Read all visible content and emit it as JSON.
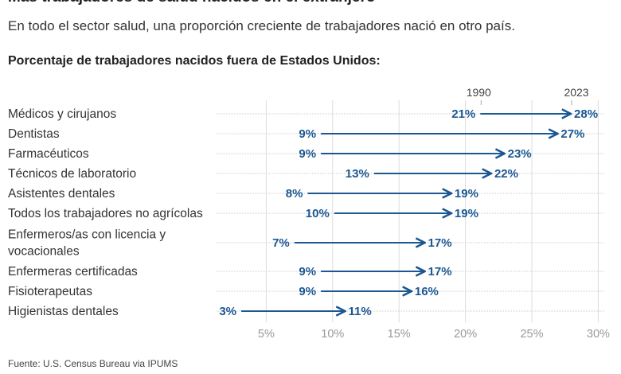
{
  "title": "Más trabajadores de salud nacidos en el extranjero",
  "subtitle": "En todo el sector salud, una proporción creciente de trabajadores nació en otro país.",
  "source": "Fuente: U.S. Census Bureau via IPUMS",
  "chart_data": {
    "type": "arrow-dumbbell",
    "title": "Porcentaje de trabajadores nacidos fuera de Estados Unidos:",
    "series_labels": {
      "start": "1990",
      "end": "2023"
    },
    "categories": [
      [
        "Médicos y cirujanos"
      ],
      [
        "Dentistas"
      ],
      [
        "Farmacéuticos"
      ],
      [
        "Técnicos de laboratorio"
      ],
      [
        "Asistentes dentales"
      ],
      [
        "Todos los trabajadores no agrícolas"
      ],
      [
        "Enfermeros/as con licencia y",
        "vocacionales"
      ],
      [
        "Enfermeras certificadas"
      ],
      [
        "Fisioterapeutas"
      ],
      [
        "Higienistas dentales"
      ]
    ],
    "values_1990": [
      21,
      9,
      9,
      13,
      8,
      10,
      7,
      9,
      9,
      3
    ],
    "values_2023": [
      28,
      27,
      23,
      22,
      19,
      19,
      17,
      17,
      16,
      11
    ],
    "xlim": [
      0,
      31
    ],
    "xticks": [
      5,
      10,
      15,
      20,
      25,
      30
    ],
    "xtick_labels": [
      "5%",
      "10%",
      "15%",
      "20%",
      "25%",
      "30%"
    ],
    "grid": true,
    "color": "#1b5792"
  }
}
